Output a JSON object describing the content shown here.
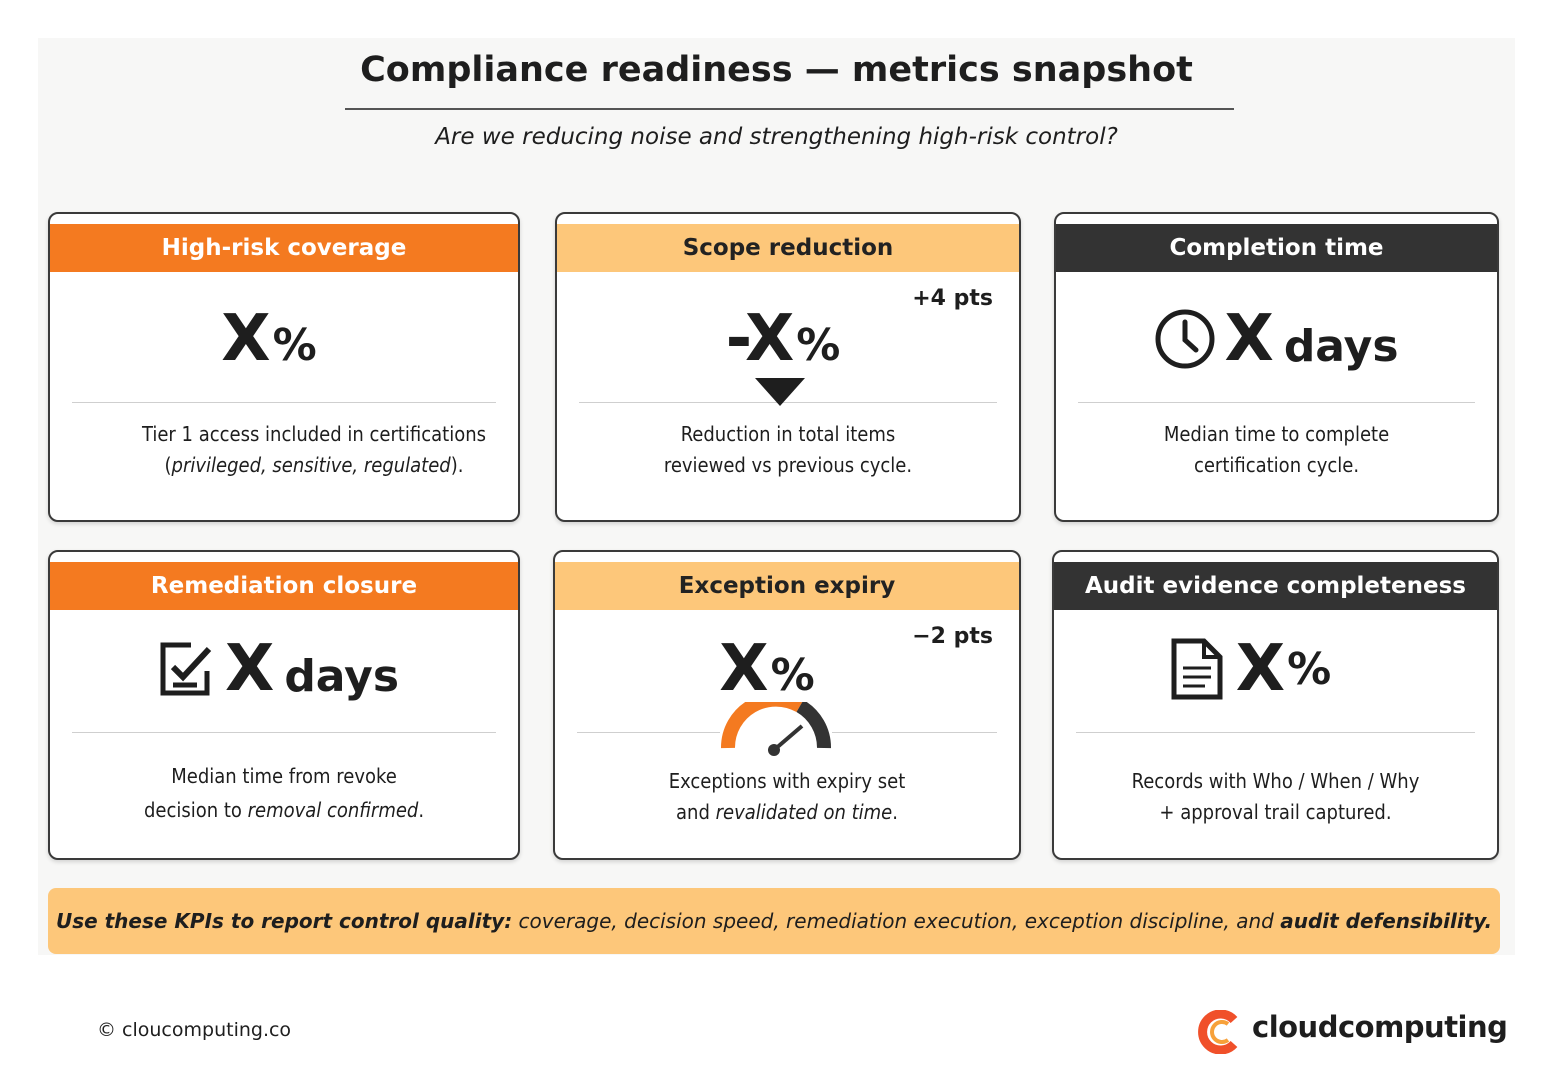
{
  "title": "Compliance readiness — metrics snapshot",
  "subtitle": "Are we reducing noise and strengthening high-risk control?",
  "cards": [
    {
      "header": "High-risk coverage",
      "value": "X",
      "unit": "%",
      "description": [
        [
          "Tier 1 access included in certifications"
        ],
        [
          "(",
          "privileged, sensitive, regulated",
          ")."
        ]
      ]
    },
    {
      "header": "Scope reduction",
      "value": "-X",
      "unit": "%",
      "delta": "+4 pts",
      "description": [
        [
          "Reduction in total items"
        ],
        [
          "reviewed vs previous cycle."
        ]
      ]
    },
    {
      "header": "Completion time",
      "value": "X",
      "unit": "days",
      "description": [
        [
          "Median time to complete"
        ],
        [
          "certification cycle."
        ]
      ]
    },
    {
      "header": "Remediation closure",
      "value": "X",
      "unit": "days",
      "description": [
        [
          "Median time from revoke"
        ],
        [
          "decision to ",
          "removal confirmed",
          "."
        ]
      ]
    },
    {
      "header": "Exception expiry",
      "value": "X",
      "unit": "%",
      "delta": "−2 pts",
      "description": [
        [
          "Exceptions with expiry set"
        ],
        [
          "and ",
          "revalidated on time",
          "."
        ]
      ]
    },
    {
      "header": "Audit evidence completeness",
      "value": "X",
      "unit": "%",
      "description": [
        [
          "Records with Who / When / Why"
        ],
        [
          "+ approval trail captured."
        ]
      ]
    }
  ],
  "banner": [
    "Use these KPIs to report control quality:",
    " coverage, decision speed, remediation execution, exception discipline, and ",
    "audit defensibility."
  ],
  "footer": {
    "copyright": "© cloucomputing.co",
    "brand": "cloudcomputing"
  }
}
